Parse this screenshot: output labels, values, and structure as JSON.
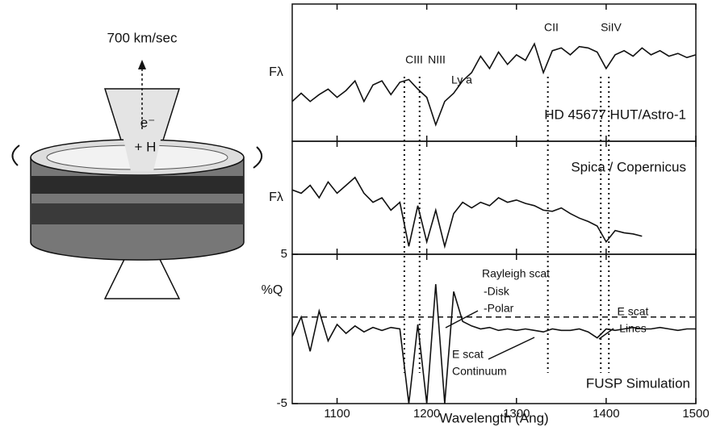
{
  "diagram": {
    "velocity": "700 km/sec",
    "electron": "e⁻",
    "ion": "+ H"
  },
  "chart_data": [
    {
      "type": "line",
      "ylabel": "Fλ",
      "annotations": [
        "CIII",
        "NIII",
        "Ly a",
        "CII",
        "SiIV",
        "HD 45677 HUT/Astro-1"
      ],
      "x": [
        1050,
        1060,
        1070,
        1080,
        1090,
        1100,
        1110,
        1120,
        1130,
        1140,
        1150,
        1160,
        1170,
        1180,
        1190,
        1200,
        1210,
        1220,
        1230,
        1240,
        1250,
        1260,
        1270,
        1280,
        1290,
        1300,
        1310,
        1320,
        1330,
        1340,
        1350,
        1360,
        1370,
        1380,
        1390,
        1400,
        1410,
        1420,
        1430,
        1440,
        1450,
        1460,
        1470,
        1480,
        1490,
        1500
      ],
      "values": [
        2.9,
        3.5,
        2.9,
        3.4,
        3.8,
        3.2,
        3.7,
        4.4,
        2.9,
        4.1,
        4.4,
        3.4,
        4.3,
        4.5,
        3.8,
        3.2,
        1.2,
        2.9,
        3.5,
        4.4,
        5.0,
        6.2,
        5.3,
        6.5,
        5.6,
        6.3,
        5.9,
        7.1,
        5.0,
        6.6,
        6.8,
        6.3,
        6.9,
        6.8,
        6.5,
        5.3,
        6.3,
        6.6,
        6.2,
        6.8,
        6.3,
        6.6,
        6.2,
        6.4,
        6.1,
        6.3
      ],
      "vlines": [
        1175,
        1192,
        1335,
        1394,
        1403
      ],
      "xlim": [
        1050,
        1500
      ],
      "xticks": [
        1100,
        1200,
        1300,
        1400,
        1500
      ],
      "ylim": [
        0,
        10
      ],
      "color": "#111111"
    },
    {
      "type": "line",
      "ylabel": "Fλ",
      "annotations": [
        "Spica / Copernicus"
      ],
      "x": [
        1050,
        1060,
        1070,
        1080,
        1090,
        1100,
        1110,
        1120,
        1130,
        1140,
        1150,
        1160,
        1170,
        1180,
        1190,
        1200,
        1210,
        1220,
        1230,
        1240,
        1250,
        1260,
        1270,
        1280,
        1290,
        1300,
        1310,
        1320,
        1330,
        1340,
        1350,
        1360,
        1370,
        1380,
        1390,
        1400,
        1410,
        1420,
        1430,
        1440
      ],
      "values": [
        5.7,
        5.4,
        6.1,
        5.0,
        6.4,
        5.4,
        6.1,
        6.8,
        5.4,
        4.6,
        5.0,
        3.9,
        4.6,
        0.7,
        4.3,
        1.1,
        3.9,
        0.7,
        3.6,
        4.6,
        4.1,
        4.6,
        4.3,
        5.0,
        4.6,
        4.8,
        4.5,
        4.3,
        3.9,
        3.8,
        4.1,
        3.6,
        3.2,
        2.9,
        2.5,
        1.1,
        2.1,
        1.9,
        1.8,
        1.6
      ],
      "xlim": [
        1050,
        1500
      ],
      "xticks": [
        1100,
        1200,
        1300,
        1400,
        1500
      ],
      "ylim": [
        0,
        10
      ],
      "color": "#111111"
    },
    {
      "type": "line",
      "ylabel": "%Q",
      "xlabel": "Wavelength (Ang)",
      "annotations": [
        "Rayleigh scat",
        "-Disk",
        "-Polar",
        "E scat",
        "Lines",
        "E scat",
        "Continuum",
        "FUSP Simulation"
      ],
      "x": [
        1050,
        1060,
        1070,
        1080,
        1090,
        1100,
        1110,
        1120,
        1130,
        1140,
        1150,
        1160,
        1170,
        1180,
        1190,
        1200,
        1210,
        1220,
        1230,
        1240,
        1250,
        1260,
        1270,
        1280,
        1290,
        1300,
        1310,
        1320,
        1330,
        1340,
        1350,
        1360,
        1370,
        1380,
        1390,
        1400,
        1410,
        1420,
        1430,
        1440,
        1450,
        1460,
        1470,
        1480,
        1490,
        1500
      ],
      "values": [
        -0.5,
        0.8,
        -1.5,
        1.2,
        -0.8,
        0.3,
        -0.3,
        0.2,
        -0.2,
        0.1,
        -0.1,
        0.1,
        0,
        -5,
        0.3,
        -5,
        3,
        -5,
        2.5,
        0.5,
        0.2,
        0,
        0.1,
        -0.1,
        0,
        -0.1,
        0,
        -0.1,
        -0.2,
        0,
        -0.1,
        -0.1,
        0,
        -0.2,
        -0.6,
        0,
        -0.1,
        0,
        0.1,
        0,
        0,
        0.1,
        0,
        -0.1,
        0,
        0
      ],
      "hline": 0.8,
      "xlim": [
        1050,
        1500
      ],
      "xticks": [
        1100,
        1200,
        1300,
        1400,
        1500
      ],
      "ylim": [
        -5,
        5
      ],
      "yticks": [
        -5,
        5
      ],
      "color": "#111111"
    }
  ]
}
